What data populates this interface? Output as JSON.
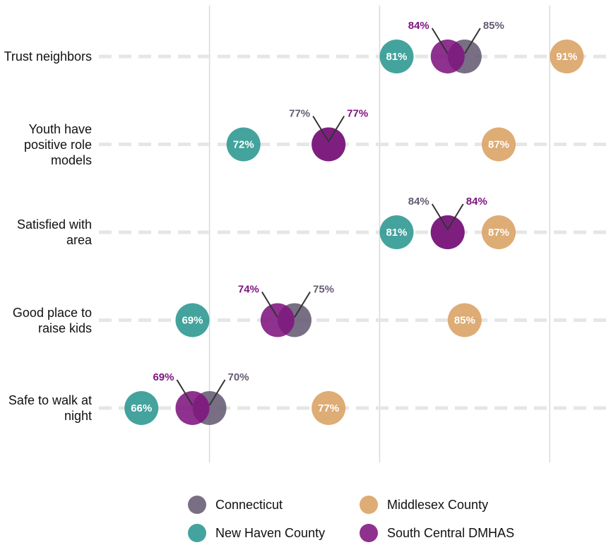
{
  "chart_data": {
    "type": "dot",
    "categories": [
      "Trust neighbors",
      "Youth have positive role models",
      "Satisfied with area",
      "Good place to raise kids",
      "Safe to walk at night"
    ],
    "series": [
      {
        "name": "Connecticut",
        "color": "#665b73",
        "values": [
          85,
          77,
          84,
          75,
          70
        ],
        "value_labels": [
          "85%",
          "77%",
          "84%",
          "75%",
          "70%"
        ]
      },
      {
        "name": "Middlesex County",
        "color": "#d9a062",
        "values": [
          91,
          87,
          87,
          85,
          77
        ],
        "value_labels": [
          "91%",
          "87%",
          "87%",
          "85%",
          "77%"
        ]
      },
      {
        "name": "New Haven County",
        "color": "#2a9690",
        "values": [
          81,
          72,
          81,
          69,
          66
        ],
        "value_labels": [
          "81%",
          "72%",
          "81%",
          "69%",
          "66%"
        ]
      },
      {
        "name": "South Central DMHAS",
        "color": "#7e1580",
        "values": [
          84,
          77,
          84,
          74,
          69
        ],
        "value_labels": [
          "84%",
          "77%",
          "84%",
          "74%",
          "69%"
        ]
      }
    ],
    "xlim": [
      63.5,
      93.6
    ],
    "xticks": [
      70,
      80,
      90
    ],
    "grid": true
  }
}
